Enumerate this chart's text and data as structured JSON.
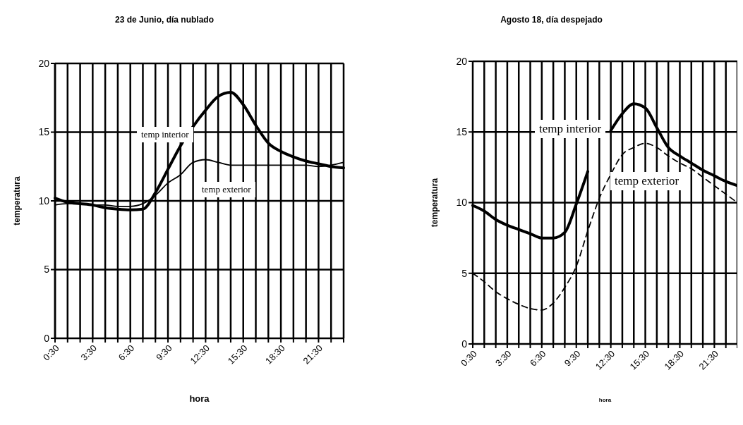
{
  "chart_data": [
    {
      "type": "line",
      "title": "23 de Junio, día nublado",
      "xlabel": "hora",
      "ylabel": "temperatura",
      "categories": [
        "0:30",
        null,
        null,
        "3:30",
        null,
        null,
        "6:30",
        null,
        null,
        "9:30",
        null,
        null,
        "12:30",
        null,
        null,
        "15:30",
        null,
        null,
        "18:30",
        null,
        null,
        "21:30",
        null,
        null
      ],
      "ylim": [
        0,
        20
      ],
      "yticks": [
        0,
        5,
        10,
        15,
        20
      ],
      "grid": true,
      "series": [
        {
          "name": "temp interior",
          "color": "#000000",
          "line_style": "solid",
          "values": [
            10.2,
            9.9,
            9.8,
            9.7,
            9.5,
            9.4,
            9.35,
            9.4,
            10.6,
            12.3,
            14.0,
            15.4,
            16.6,
            17.6,
            17.9,
            17.0,
            15.5,
            14.2,
            13.6,
            13.2,
            12.9,
            12.7,
            12.5,
            12.4
          ]
        },
        {
          "name": "temp exterior",
          "color": "#000000",
          "line_style": "solid",
          "values": [
            9.7,
            9.8,
            9.8,
            9.7,
            9.7,
            9.6,
            9.6,
            9.8,
            10.4,
            11.3,
            11.9,
            12.8,
            13.0,
            12.8,
            12.6,
            12.6,
            12.6,
            12.6,
            12.6,
            12.6,
            12.6,
            12.5,
            12.6,
            12.8
          ]
        }
      ]
    },
    {
      "type": "line",
      "title": "Agosto 18, día despejado",
      "xlabel": "hora",
      "ylabel": "temperatura",
      "categories": [
        "0:30",
        null,
        null,
        "3:30",
        null,
        null,
        "6:30",
        null,
        null,
        "9:30",
        null,
        null,
        "12:30",
        null,
        null,
        "15:30",
        null,
        null,
        "18:30",
        null,
        null,
        "21:30",
        null,
        null
      ],
      "ylim": [
        0,
        20
      ],
      "yticks": [
        0,
        5,
        10,
        15,
        20
      ],
      "grid": true,
      "series": [
        {
          "name": "temp interior",
          "color": "#000000",
          "line_style": "solid",
          "values": [
            9.8,
            9.4,
            8.8,
            8.4,
            8.1,
            7.8,
            7.5,
            7.5,
            7.9,
            9.9,
            12.2,
            null,
            15.1,
            16.3,
            17.0,
            16.7,
            15.3,
            13.9,
            13.3,
            12.8,
            12.3,
            11.9,
            11.5,
            11.2
          ]
        },
        {
          "name": "temp exterior",
          "color": "#000000",
          "line_style": "dashed",
          "values": [
            5.0,
            4.4,
            3.7,
            3.2,
            2.8,
            2.5,
            2.4,
            2.9,
            4.0,
            5.5,
            8.0,
            10.3,
            12.0,
            13.4,
            13.9,
            14.2,
            13.9,
            13.3,
            12.8,
            12.4,
            11.8,
            11.2,
            10.6,
            10.0
          ]
        }
      ]
    }
  ]
}
